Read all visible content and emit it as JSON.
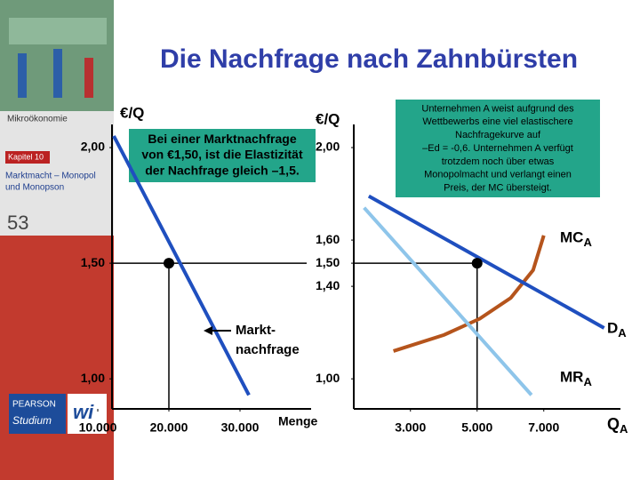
{
  "slide": {
    "title": "Die Nachfrage nach Zahnbürsten",
    "course": "Mikroökonomie",
    "chapter": "Kapitel 10",
    "chapter_title": [
      "Marktmacht – Monopol",
      "und Monopson"
    ],
    "slide_number": "53",
    "publisher": "PEARSON",
    "imprint": "Studium",
    "logo": "wi"
  },
  "chart_data": [
    {
      "type": "line",
      "y_label": "€/Q",
      "x_label": "Menge",
      "xlim": [
        12000,
        40000
      ],
      "ylim": [
        0.87,
        2.1
      ],
      "xticks": [
        {
          "value": 10000,
          "label": "10.000"
        },
        {
          "value": 20000,
          "label": "20.000"
        },
        {
          "value": 30000,
          "label": "30.000"
        }
      ],
      "yticks": [
        {
          "value": 2,
          "label": "2,00"
        },
        {
          "value": 1.5,
          "label": "1,50"
        },
        {
          "value": 1,
          "label": "1,00"
        }
      ],
      "series": [
        {
          "color": "#1f4fbf",
          "x": [
            12250,
            31250
          ],
          "values": [
            2.05,
            0.93
          ],
          "label_lines": [
            "Markt-",
            "nachfrage"
          ]
        }
      ],
      "points": [
        {
          "x": 20000,
          "y": 1.5
        }
      ],
      "annotation": [
        "Bei einer Marktnachfrage",
        "von €1,50, ist die Elastizität",
        "der Nachfrage gleich –1,5."
      ]
    },
    {
      "type": "line",
      "y_label": "€/Q",
      "x_label": "Q",
      "x_label_subscript": "A",
      "xlim": [
        1300,
        9300
      ],
      "ylim": [
        0.87,
        2.1
      ],
      "xticks": [
        {
          "value": 3000,
          "label": "3.000"
        },
        {
          "value": 5000,
          "label": "5.000"
        },
        {
          "value": 7000,
          "label": "7.000"
        }
      ],
      "yticks": [
        {
          "value": 2,
          "label": "2,00"
        },
        {
          "value": 1.6,
          "label": "1,60"
        },
        {
          "value": 1.5,
          "label": "1,50"
        },
        {
          "value": 1.4,
          "label": "1,40"
        },
        {
          "value": 1,
          "label": "1,00"
        }
      ],
      "series": [
        {
          "name": "MC",
          "name_subscript": "A",
          "color": "#b5541c",
          "x": [
            2490,
            4010,
            5080,
            6010,
            6680,
            7000
          ],
          "values": [
            1.12,
            1.19,
            1.26,
            1.35,
            1.47,
            1.62
          ]
        },
        {
          "name": "D",
          "name_subscript": "A",
          "color": "#1f4fbf",
          "x": [
            1750,
            8810
          ],
          "values": [
            1.79,
            1.22
          ]
        },
        {
          "name": "MR",
          "name_subscript": "A",
          "color": "#8ec5ea",
          "x": [
            1610,
            6630
          ],
          "values": [
            1.74,
            0.93
          ]
        }
      ],
      "points": [
        {
          "x": 5000,
          "y": 1.5
        }
      ],
      "annotation": [
        "Unternehmen A weist aufgrund des",
        "Wettbewerbs eine viel  elastischere",
        "Nachfragekurve auf",
        "–Ed = -0,6.  Unternehmen A verfügt",
        "trotzdem noch über etwas",
        "Monopolmacht und verlangt einen",
        "Preis, der MC übersteigt."
      ]
    }
  ]
}
